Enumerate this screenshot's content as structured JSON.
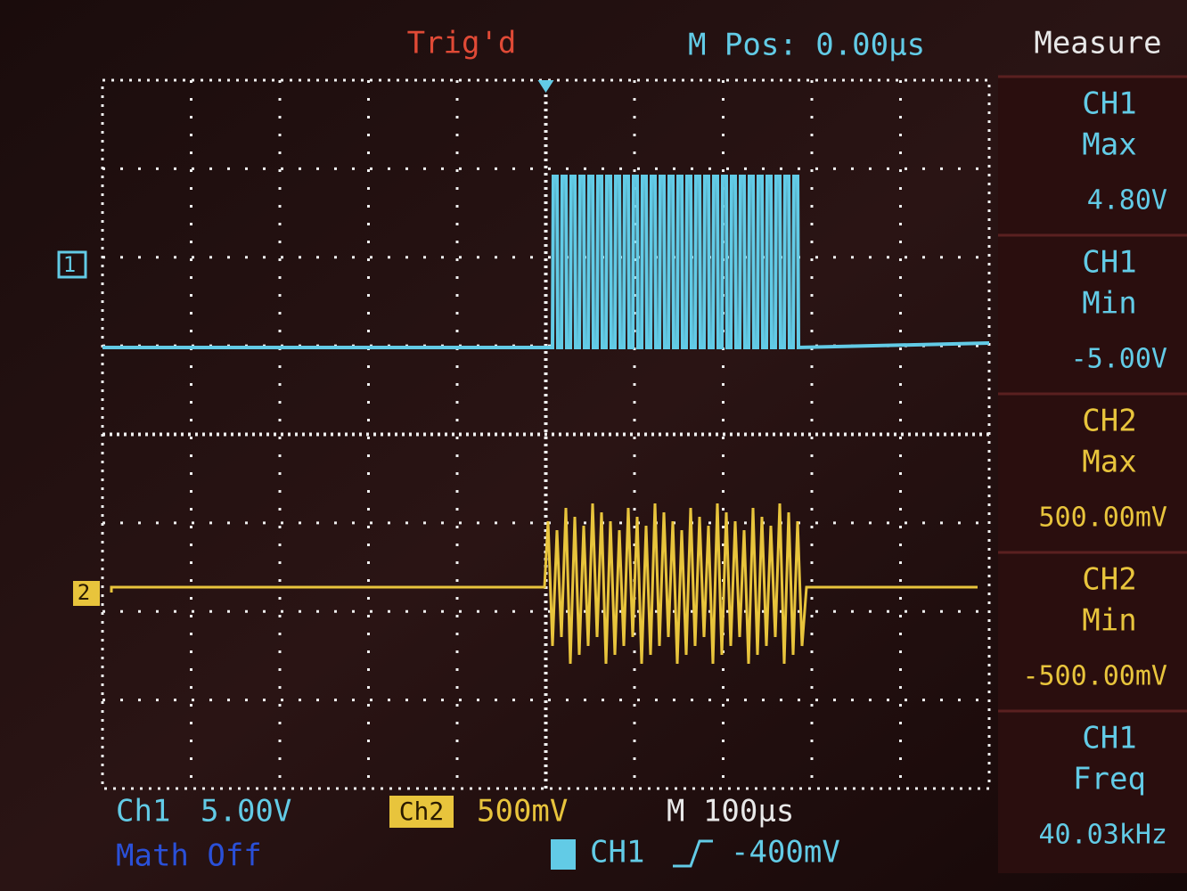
{
  "header": {
    "status": "Trig'd",
    "position": "M Pos: 0.00µs"
  },
  "markers": {
    "ch1": "1",
    "ch2": "2"
  },
  "measure": {
    "title": "Measure",
    "items": [
      {
        "channel": "CH1",
        "type": "Max",
        "value": "4.80V"
      },
      {
        "channel": "CH1",
        "type": "Min",
        "value": "-5.00V"
      },
      {
        "channel": "CH2",
        "type": "Max",
        "value": "500.00mV"
      },
      {
        "channel": "CH2",
        "type": "Min",
        "value": "-500.00mV"
      },
      {
        "channel": "CH1",
        "type": "Freq",
        "value": "40.03kHz"
      }
    ]
  },
  "footer": {
    "ch1_label": "Ch1",
    "ch1_scale": "5.00V",
    "ch2_label": "Ch2",
    "ch2_scale": "500mV",
    "timebase": "M 100µs",
    "math": "Math Off",
    "trigger_source": "CH1",
    "trigger_level": "-400mV"
  }
}
